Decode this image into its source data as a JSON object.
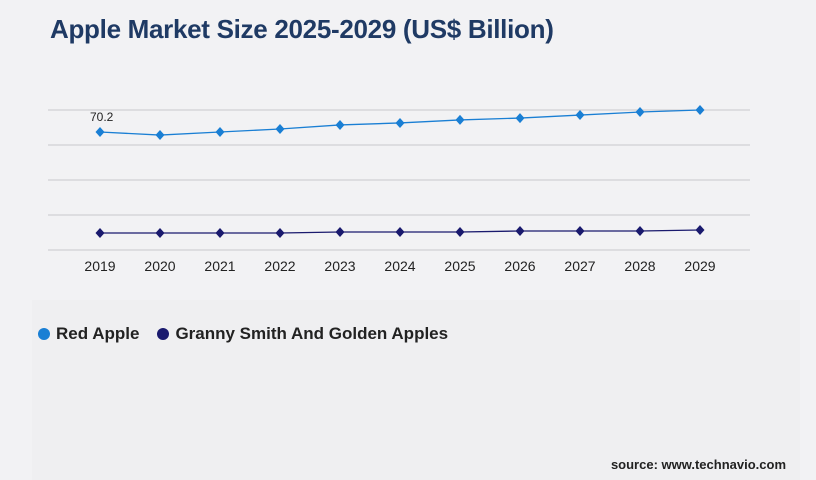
{
  "title": "Apple Market Size 2025-2029 (US$ Billion)",
  "source": "source: www.technavio.com",
  "chart_data": {
    "type": "line",
    "title": "Apple Market Size 2025-2029 (US$ Billion)",
    "categories": [
      "2019",
      "2020",
      "2021",
      "2022",
      "2023",
      "2024",
      "2025",
      "2026",
      "2027",
      "2028",
      "2029"
    ],
    "series": [
      {
        "name": "Red Apple",
        "color": "#1a7fd4",
        "values": [
          70.2,
          68.4,
          70.2,
          72.0,
          74.4,
          75.6,
          77.4,
          78.5,
          80.3,
          82.1,
          83.3
        ]
      },
      {
        "name": "Granny Smith And Golden Apples",
        "color": "#1a1a6e",
        "values": [
          10.1,
          10.1,
          10.1,
          10.1,
          10.7,
          10.7,
          10.7,
          11.3,
          11.3,
          11.3,
          11.9
        ]
      }
    ],
    "data_labels": [
      {
        "series": 0,
        "index": 0,
        "text": "70.2"
      }
    ],
    "ylim": [
      0,
      83.3
    ],
    "grid": true,
    "legend": "bottom-left"
  }
}
